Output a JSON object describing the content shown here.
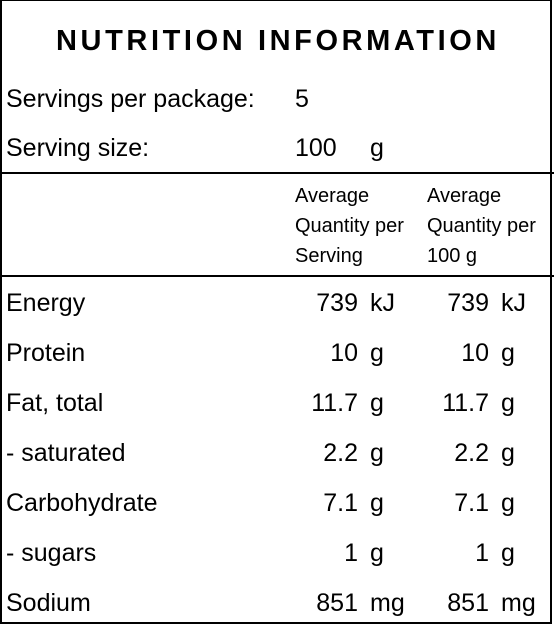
{
  "panel": {
    "title": "NUTRITION INFORMATION",
    "servings_label": "Servings per package:",
    "servings_value": "5",
    "serving_size_label": "Serving size:",
    "serving_size_value": "100",
    "serving_size_unit": "g"
  },
  "columns": {
    "per_serving": "Average\nQuantity per\nServing",
    "per_100g": "Average\nQuantity per\n100 g"
  },
  "rows": [
    {
      "name": "Energy",
      "serving": "739",
      "serving_unit": "kJ",
      "per100": "739",
      "per100_unit": "kJ"
    },
    {
      "name": "Protein",
      "serving": "10",
      "serving_unit": "g",
      "per100": "10",
      "per100_unit": "g"
    },
    {
      "name": "Fat, total",
      "serving": "11.7",
      "serving_unit": "g",
      "per100": "11.7",
      "per100_unit": "g"
    },
    {
      "name": "- saturated",
      "serving": "2.2",
      "serving_unit": "g",
      "per100": "2.2",
      "per100_unit": "g"
    },
    {
      "name": "Carbohydrate",
      "serving": "7.1",
      "serving_unit": "g",
      "per100": "7.1",
      "per100_unit": "g"
    },
    {
      "name": "- sugars",
      "serving": "1",
      "serving_unit": "g",
      "per100": "1",
      "per100_unit": "g"
    },
    {
      "name": "Sodium",
      "serving": "851",
      "serving_unit": "mg",
      "per100": "851",
      "per100_unit": "mg"
    }
  ]
}
